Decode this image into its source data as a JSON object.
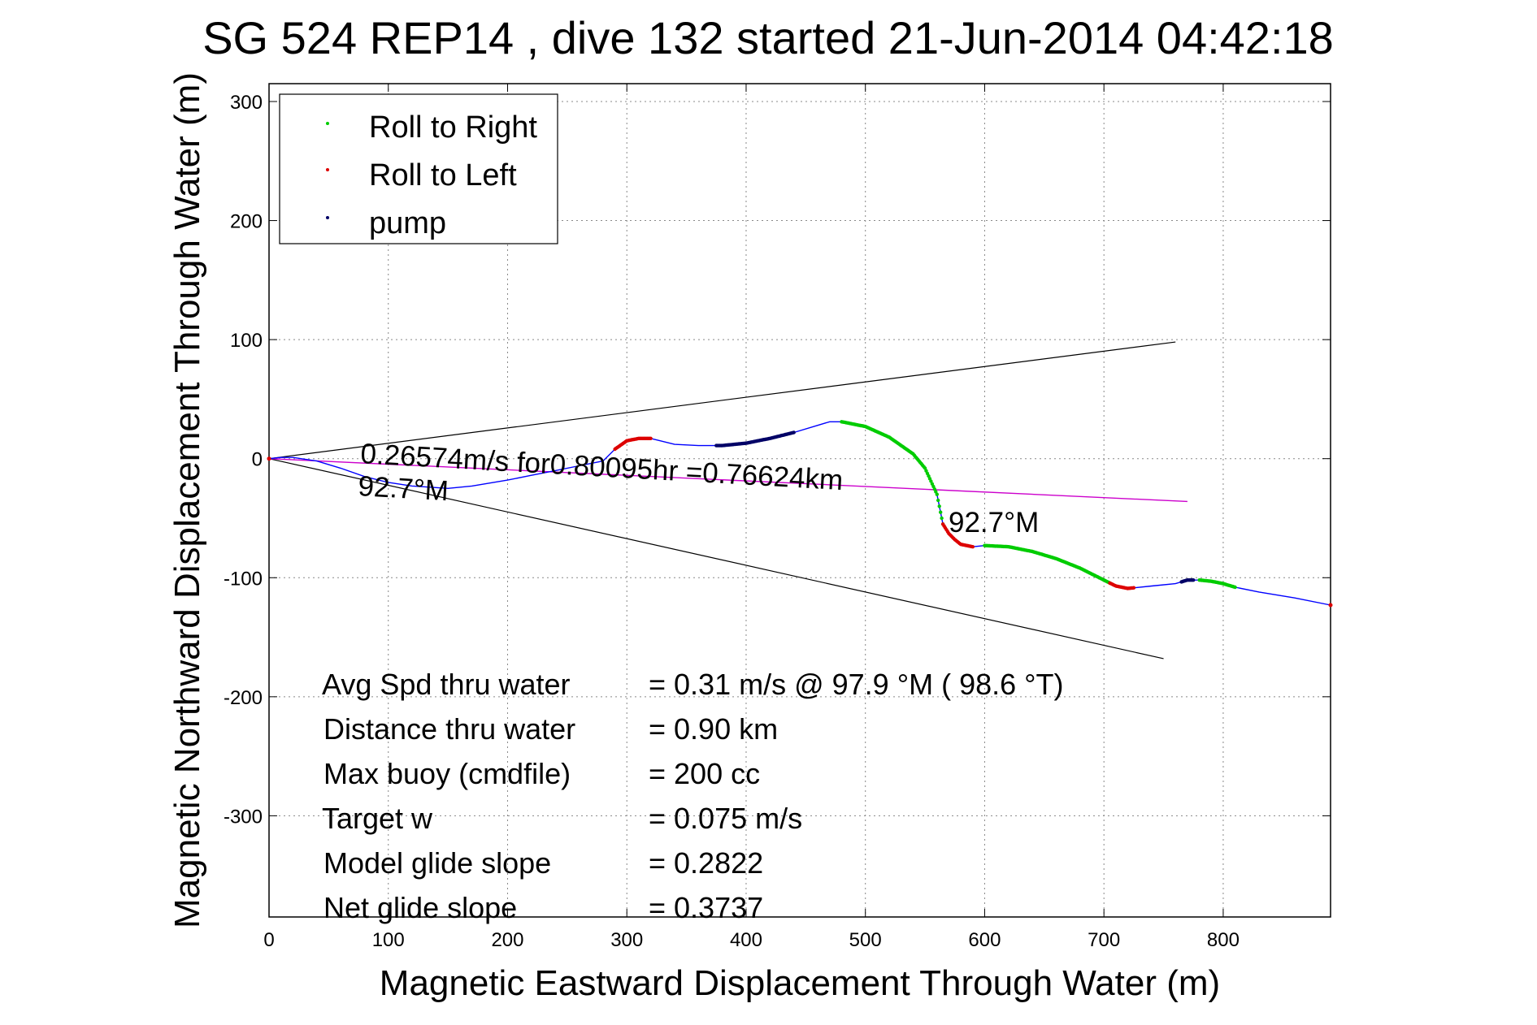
{
  "chart_data": {
    "type": "line",
    "title": "SG 524   REP14  , dive 132 started 21-Jun-2014 04:42:18",
    "xlabel": "Magnetic Eastward Displacement Through Water (m)",
    "ylabel": "Magnetic Northward Displacement Through Water (m)",
    "xlim": [
      0,
      890
    ],
    "ylim": [
      -385,
      315
    ],
    "xticks": [
      0,
      100,
      200,
      300,
      400,
      500,
      600,
      700,
      800
    ],
    "yticks": [
      -300,
      -200,
      -100,
      0,
      100,
      200,
      300
    ],
    "xtick_labels": [
      "0",
      "100",
      "200",
      "300",
      "400",
      "500",
      "600",
      "700",
      "800"
    ],
    "ytick_labels": [
      "-300",
      "-200",
      "-100",
      "0",
      "100",
      "200",
      "300"
    ],
    "grid": true,
    "legend_position": "top-left",
    "colors": {
      "roll_right": "#00cc00",
      "roll_left": "#dd0000",
      "pump": "#000066",
      "track": "#0000ff",
      "heading_line": "#cc00cc",
      "cone": "#000000"
    },
    "legend": [
      {
        "label": "Roll to Right",
        "color": "#00cc00"
      },
      {
        "label": "Roll to Left",
        "color": "#dd0000"
      },
      {
        "label": "pump",
        "color": "#000066"
      }
    ],
    "track": {
      "x": [
        0,
        10,
        20,
        40,
        60,
        80,
        100,
        120,
        150,
        170,
        200,
        220,
        240,
        260,
        280,
        290,
        300,
        310,
        320,
        340,
        360,
        380,
        400,
        420,
        440,
        460,
        470,
        480,
        500,
        520,
        540,
        550,
        560,
        565,
        570,
        575,
        580,
        590,
        600,
        620,
        640,
        660,
        680,
        700,
        710,
        720,
        740,
        760,
        770,
        780,
        790,
        800,
        810,
        830,
        860,
        890
      ],
      "y": [
        0,
        1,
        1,
        -2,
        -8,
        -15,
        -20,
        -23,
        -25,
        -23,
        -18,
        -14,
        -10,
        -6,
        -2,
        8,
        15,
        17,
        17,
        12,
        11,
        11,
        13,
        17,
        22,
        28,
        31,
        31,
        27,
        18,
        4,
        -8,
        -30,
        -55,
        -63,
        -68,
        -72,
        -74,
        -73,
        -74,
        -78,
        -84,
        -92,
        -102,
        -107,
        -109,
        -107,
        -105,
        -102,
        -102,
        -103,
        -105,
        -108,
        -112,
        -117,
        -123
      ]
    },
    "segments": [
      {
        "kind": "roll_left",
        "from_x": 290,
        "to_x": 320
      },
      {
        "kind": "pump",
        "from_x": 375,
        "to_x": 440
      },
      {
        "kind": "roll_right",
        "from_x": 480,
        "to_x": 565
      },
      {
        "kind": "roll_left",
        "from_x": 565,
        "to_x": 590
      },
      {
        "kind": "roll_right",
        "from_x": 600,
        "to_x": 705
      },
      {
        "kind": "roll_left",
        "from_x": 705,
        "to_x": 725
      },
      {
        "kind": "pump",
        "from_x": 765,
        "to_x": 775
      },
      {
        "kind": "roll_right",
        "from_x": 780,
        "to_x": 810
      }
    ],
    "heading_line": {
      "x": [
        0,
        770
      ],
      "y": [
        0,
        -36
      ]
    },
    "cone_lines": [
      {
        "x": [
          0,
          760
        ],
        "y": [
          0,
          98
        ]
      },
      {
        "x": [
          0,
          750
        ],
        "y": [
          0,
          -168
        ]
      }
    ],
    "annotations": {
      "speed": "0.26574m/s for0.80095hr =0.76624km",
      "heading_left": "92.7°M",
      "heading_right": "92.7°M"
    },
    "stats": [
      {
        "label": "Avg Spd thru water",
        "value": "=  0.31 m/s @  97.9 °M ( 98.6 °T)"
      },
      {
        "label": "Distance thru water",
        "value": "=  0.90 km"
      },
      {
        "label": "Max buoy (cmdfile)",
        "value": "= 200 cc"
      },
      {
        "label": "Target w",
        "value": "= 0.075 m/s"
      },
      {
        "label": "Model glide slope",
        "value": "= 0.2822"
      },
      {
        "label": "Net glide slope",
        "value": "= 0.3737"
      }
    ]
  }
}
